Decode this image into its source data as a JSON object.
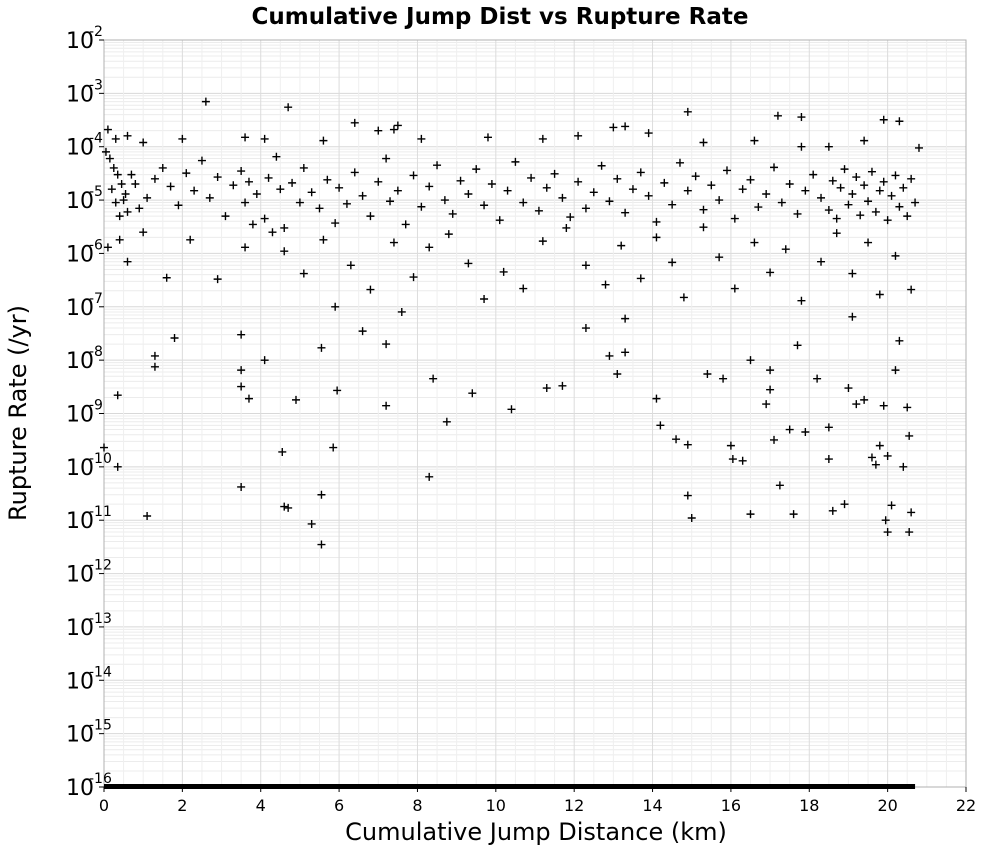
{
  "chart_data": {
    "type": "scatter",
    "title": "Cumulative Jump Dist vs Rupture Rate",
    "xlabel": "Cumulative Jump Distance (km)",
    "ylabel": "Rupture Rate (/yr)",
    "xlim": [
      0,
      22
    ],
    "ylim": [
      1e-16,
      0.01
    ],
    "y_scale": "log",
    "grid": true,
    "legend": "none",
    "marker": "plus",
    "marker_color": "#000000",
    "grid_color": "#e6e6e6",
    "x_ticks": [
      "0",
      "2",
      "4",
      "6",
      "8",
      "10",
      "12",
      "14",
      "16",
      "18",
      "20",
      "22"
    ],
    "y_tick_exponents": [
      -2,
      -3,
      -4,
      -5,
      -6,
      -7,
      -8,
      -9,
      -10,
      -11,
      -12,
      -13,
      -14,
      -15,
      -16
    ],
    "y_tick_base": "10",
    "points": [
      [
        2.6,
        0.0007
      ],
      [
        4.7,
        0.00055
      ],
      [
        14.9,
        0.00045
      ],
      [
        17.2,
        0.00038
      ],
      [
        17.8,
        0.00036
      ],
      [
        19.9,
        0.00032
      ],
      [
        20.3,
        0.0003
      ],
      [
        6.4,
        0.00028
      ],
      [
        7.0,
        0.0002
      ],
      [
        7.4,
        0.00021
      ],
      [
        7.5,
        0.00025
      ],
      [
        13.0,
        0.00023
      ],
      [
        13.3,
        0.00024
      ],
      [
        0.1,
        0.00021
      ],
      [
        0.3,
        0.00014
      ],
      [
        0.6,
        0.00016
      ],
      [
        1.0,
        0.00012
      ],
      [
        2.0,
        0.00014
      ],
      [
        3.6,
        0.00015
      ],
      [
        4.1,
        0.00014
      ],
      [
        5.6,
        0.00013
      ],
      [
        8.1,
        0.00014
      ],
      [
        9.8,
        0.00015
      ],
      [
        11.2,
        0.00014
      ],
      [
        12.1,
        0.00016
      ],
      [
        13.9,
        0.00018
      ],
      [
        15.3,
        0.00012
      ],
      [
        16.6,
        0.00013
      ],
      [
        17.8,
        0.0001
      ],
      [
        18.5,
        0.0001
      ],
      [
        19.4,
        0.00013
      ],
      [
        20.8,
        9.5e-05
      ],
      [
        0.05,
        8e-05
      ],
      [
        0.15,
        6e-05
      ],
      [
        0.25,
        4e-05
      ],
      [
        0.35,
        3e-05
      ],
      [
        0.45,
        2e-05
      ],
      [
        0.5,
        1e-05
      ],
      [
        0.6,
        6e-06
      ],
      [
        0.7,
        3e-05
      ],
      [
        0.2,
        1.6e-05
      ],
      [
        0.3,
        9e-06
      ],
      [
        0.4,
        5e-06
      ],
      [
        0.55,
        1.3e-05
      ],
      [
        0.8,
        2e-05
      ],
      [
        0.9,
        7e-06
      ],
      [
        1.1,
        1.1e-05
      ],
      [
        1.3,
        2.5e-05
      ],
      [
        1.5,
        4e-05
      ],
      [
        1.7,
        1.8e-05
      ],
      [
        1.9,
        8e-06
      ],
      [
        2.1,
        3.2e-05
      ],
      [
        2.3,
        1.5e-05
      ],
      [
        2.5,
        5.5e-05
      ],
      [
        2.7,
        1.1e-05
      ],
      [
        2.9,
        2.7e-05
      ],
      [
        3.1,
        5e-06
      ],
      [
        3.3,
        1.9e-05
      ],
      [
        3.5,
        3.5e-05
      ],
      [
        3.6,
        9e-06
      ],
      [
        3.7,
        2.2e-05
      ],
      [
        3.9,
        1.3e-05
      ],
      [
        4.1,
        4.5e-06
      ],
      [
        4.2,
        2.6e-05
      ],
      [
        4.4,
        6.5e-05
      ],
      [
        4.5,
        1.6e-05
      ],
      [
        4.6,
        3e-06
      ],
      [
        4.8,
        2.1e-05
      ],
      [
        5.0,
        9e-06
      ],
      [
        5.1,
        4e-05
      ],
      [
        5.3,
        1.4e-05
      ],
      [
        5.5,
        7e-06
      ],
      [
        5.7,
        2.4e-05
      ],
      [
        5.9,
        3.7e-06
      ],
      [
        6.0,
        1.7e-05
      ],
      [
        6.2,
        8.5e-06
      ],
      [
        6.4,
        3.3e-05
      ],
      [
        6.6,
        1.2e-05
      ],
      [
        6.8,
        5e-06
      ],
      [
        7.0,
        2.2e-05
      ],
      [
        7.2,
        6e-05
      ],
      [
        7.3,
        9.5e-06
      ],
      [
        7.5,
        1.5e-05
      ],
      [
        7.7,
        3.5e-06
      ],
      [
        7.9,
        2.9e-05
      ],
      [
        8.1,
        7.5e-06
      ],
      [
        8.3,
        1.8e-05
      ],
      [
        8.5,
        4.5e-05
      ],
      [
        8.7,
        1e-05
      ],
      [
        8.9,
        5.5e-06
      ],
      [
        9.1,
        2.3e-05
      ],
      [
        9.3,
        1.3e-05
      ],
      [
        9.5,
        3.8e-05
      ],
      [
        9.7,
        8e-06
      ],
      [
        9.9,
        2e-05
      ],
      [
        10.1,
        4.2e-06
      ],
      [
        10.3,
        1.5e-05
      ],
      [
        10.5,
        5.2e-05
      ],
      [
        10.7,
        9e-06
      ],
      [
        10.9,
        2.6e-05
      ],
      [
        11.1,
        6.3e-06
      ],
      [
        11.3,
        1.7e-05
      ],
      [
        11.5,
        3.1e-05
      ],
      [
        11.7,
        1.1e-05
      ],
      [
        11.9,
        4.8e-06
      ],
      [
        12.1,
        2.2e-05
      ],
      [
        12.3,
        7e-06
      ],
      [
        12.5,
        1.4e-05
      ],
      [
        12.7,
        4.4e-05
      ],
      [
        12.9,
        9.5e-06
      ],
      [
        13.1,
        2.5e-05
      ],
      [
        13.3,
        5.8e-06
      ],
      [
        13.5,
        1.6e-05
      ],
      [
        13.7,
        3.3e-05
      ],
      [
        13.9,
        1.2e-05
      ],
      [
        14.1,
        3.9e-06
      ],
      [
        14.3,
        2.1e-05
      ],
      [
        14.5,
        8.2e-06
      ],
      [
        14.7,
        5e-05
      ],
      [
        14.9,
        1.5e-05
      ],
      [
        15.1,
        2.8e-05
      ],
      [
        15.3,
        6.6e-06
      ],
      [
        15.5,
        1.9e-05
      ],
      [
        15.7,
        1e-05
      ],
      [
        15.9,
        3.6e-05
      ],
      [
        16.1,
        4.5e-06
      ],
      [
        16.3,
        1.6e-05
      ],
      [
        16.5,
        2.4e-05
      ],
      [
        16.7,
        7.4e-06
      ],
      [
        16.9,
        1.3e-05
      ],
      [
        17.1,
        4.1e-05
      ],
      [
        17.3,
        9e-06
      ],
      [
        17.5,
        2e-05
      ],
      [
        17.7,
        5.5e-06
      ],
      [
        17.9,
        1.5e-05
      ],
      [
        18.1,
        3e-05
      ],
      [
        18.3,
        1.1e-05
      ],
      [
        18.5,
        6.5e-06
      ],
      [
        18.6,
        2.3e-05
      ],
      [
        18.7,
        4.5e-06
      ],
      [
        18.8,
        1.7e-05
      ],
      [
        18.9,
        3.8e-05
      ],
      [
        19.0,
        8.2e-06
      ],
      [
        19.1,
        1.3e-05
      ],
      [
        19.2,
        2.7e-05
      ],
      [
        19.3,
        5.2e-06
      ],
      [
        19.4,
        1.9e-05
      ],
      [
        19.5,
        9.5e-06
      ],
      [
        19.6,
        3.4e-05
      ],
      [
        19.7,
        6e-06
      ],
      [
        19.8,
        1.5e-05
      ],
      [
        19.9,
        2.2e-05
      ],
      [
        20.0,
        4.2e-06
      ],
      [
        20.1,
        1.2e-05
      ],
      [
        20.2,
        2.9e-05
      ],
      [
        20.3,
        7.5e-06
      ],
      [
        20.4,
        1.7e-05
      ],
      [
        20.5,
        5e-06
      ],
      [
        20.6,
        2.5e-05
      ],
      [
        20.7,
        9e-06
      ],
      [
        0.1,
        1.3e-06
      ],
      [
        0.4,
        1.8e-06
      ],
      [
        0.6,
        7e-07
      ],
      [
        1.0,
        2.5e-06
      ],
      [
        1.6,
        3.5e-07
      ],
      [
        2.2,
        1.8e-06
      ],
      [
        2.9,
        3.3e-07
      ],
      [
        3.6,
        1.3e-06
      ],
      [
        3.8,
        3.5e-06
      ],
      [
        4.3,
        2.5e-06
      ],
      [
        4.6,
        1.1e-06
      ],
      [
        5.1,
        4.2e-07
      ],
      [
        5.6,
        1.8e-06
      ],
      [
        5.9,
        1e-07
      ],
      [
        6.3,
        6e-07
      ],
      [
        6.8,
        2.1e-07
      ],
      [
        7.4,
        1.6e-06
      ],
      [
        7.9,
        3.6e-07
      ],
      [
        8.3,
        1.3e-06
      ],
      [
        8.8,
        2.3e-06
      ],
      [
        9.3,
        6.5e-07
      ],
      [
        9.7,
        1.4e-07
      ],
      [
        10.2,
        4.5e-07
      ],
      [
        10.7,
        2.2e-07
      ],
      [
        11.2,
        1.7e-06
      ],
      [
        11.8,
        3e-06
      ],
      [
        12.3,
        6e-07
      ],
      [
        12.8,
        2.6e-07
      ],
      [
        13.2,
        1.4e-06
      ],
      [
        13.7,
        3.4e-07
      ],
      [
        14.1,
        2e-06
      ],
      [
        14.5,
        6.8e-07
      ],
      [
        14.8,
        1.5e-07
      ],
      [
        15.3,
        3.1e-06
      ],
      [
        15.7,
        8.5e-07
      ],
      [
        16.1,
        2.2e-07
      ],
      [
        16.6,
        1.6e-06
      ],
      [
        17.0,
        4.4e-07
      ],
      [
        17.4,
        1.2e-06
      ],
      [
        17.8,
        1.3e-07
      ],
      [
        18.3,
        7e-07
      ],
      [
        18.7,
        2.4e-06
      ],
      [
        19.1,
        4.2e-07
      ],
      [
        19.5,
        1.6e-06
      ],
      [
        19.8,
        1.7e-07
      ],
      [
        20.2,
        9e-07
      ],
      [
        20.6,
        2.1e-07
      ],
      [
        0.0,
        2.3e-10
      ],
      [
        0.35,
        2.2e-09
      ],
      [
        0.35,
        1e-10
      ],
      [
        1.1,
        1.2e-11
      ],
      [
        1.3,
        1.2e-08
      ],
      [
        1.3,
        7.5e-09
      ],
      [
        1.8,
        2.6e-08
      ],
      [
        3.5,
        3e-08
      ],
      [
        3.5,
        6.5e-09
      ],
      [
        3.5,
        3.2e-09
      ],
      [
        3.5,
        4.2e-11
      ],
      [
        3.7,
        1.9e-09
      ],
      [
        4.1,
        1e-08
      ],
      [
        4.55,
        1.9e-10
      ],
      [
        4.6,
        1.8e-11
      ],
      [
        4.7,
        1.7e-11
      ],
      [
        4.9,
        1.8e-09
      ],
      [
        5.3,
        8.5e-12
      ],
      [
        5.55,
        1.7e-08
      ],
      [
        5.55,
        3e-11
      ],
      [
        5.55,
        3.5e-12
      ],
      [
        5.85,
        2.3e-10
      ],
      [
        5.95,
        2.7e-09
      ],
      [
        6.6,
        3.5e-08
      ],
      [
        7.2,
        2e-08
      ],
      [
        7.2,
        1.4e-09
      ],
      [
        7.6,
        8e-08
      ],
      [
        8.3,
        6.5e-11
      ],
      [
        8.4,
        4.5e-09
      ],
      [
        8.75,
        7e-10
      ],
      [
        9.4,
        2.4e-09
      ],
      [
        10.4,
        1.2e-09
      ],
      [
        11.3,
        3e-09
      ],
      [
        11.7,
        3.3e-09
      ],
      [
        12.3,
        4e-08
      ],
      [
        12.9,
        1.2e-08
      ],
      [
        13.1,
        5.5e-09
      ],
      [
        13.3,
        1.4e-08
      ],
      [
        13.3,
        6e-08
      ],
      [
        14.1,
        1.9e-09
      ],
      [
        14.2,
        6e-10
      ],
      [
        14.6,
        3.3e-10
      ],
      [
        14.9,
        2.6e-10
      ],
      [
        14.9,
        2.9e-11
      ],
      [
        15.0,
        1.1e-11
      ],
      [
        15.4,
        5.5e-09
      ],
      [
        15.8,
        4.5e-09
      ],
      [
        16.0,
        2.5e-10
      ],
      [
        16.05,
        1.4e-10
      ],
      [
        16.3,
        1.3e-10
      ],
      [
        16.5,
        1.3e-11
      ],
      [
        16.5,
        1e-08
      ],
      [
        17.0,
        6.5e-09
      ],
      [
        17.0,
        2.8e-09
      ],
      [
        17.1,
        3.2e-10
      ],
      [
        17.25,
        4.5e-11
      ],
      [
        17.5,
        5e-10
      ],
      [
        17.6,
        1.3e-11
      ],
      [
        17.7,
        1.9e-08
      ],
      [
        17.9,
        4.5e-10
      ],
      [
        18.5,
        5.5e-10
      ],
      [
        18.5,
        1.4e-10
      ],
      [
        18.6,
        1.5e-11
      ],
      [
        18.9,
        2e-11
      ],
      [
        19.0,
        3e-09
      ],
      [
        19.1,
        6.5e-08
      ],
      [
        19.2,
        1.5e-09
      ],
      [
        19.4,
        1.8e-09
      ],
      [
        19.7,
        1.1e-10
      ],
      [
        19.9,
        1.4e-09
      ],
      [
        19.95,
        1e-11
      ],
      [
        20.0,
        6e-12
      ],
      [
        20.1,
        1.9e-11
      ],
      [
        20.2,
        6.5e-09
      ],
      [
        20.3,
        2.3e-08
      ],
      [
        20.4,
        1e-10
      ],
      [
        20.5,
        1.3e-09
      ],
      [
        20.55,
        3.8e-10
      ],
      [
        20.55,
        6e-12
      ],
      [
        20.6,
        1.4e-11
      ],
      [
        19.6,
        1.5e-10
      ],
      [
        18.2,
        4.5e-09
      ],
      [
        16.9,
        1.5e-09
      ],
      [
        19.8,
        2.5e-10
      ],
      [
        20.0,
        1.6e-10
      ]
    ],
    "baseline_band": {
      "x_from": 0,
      "x_to": 20.7,
      "y": 1e-16
    }
  }
}
